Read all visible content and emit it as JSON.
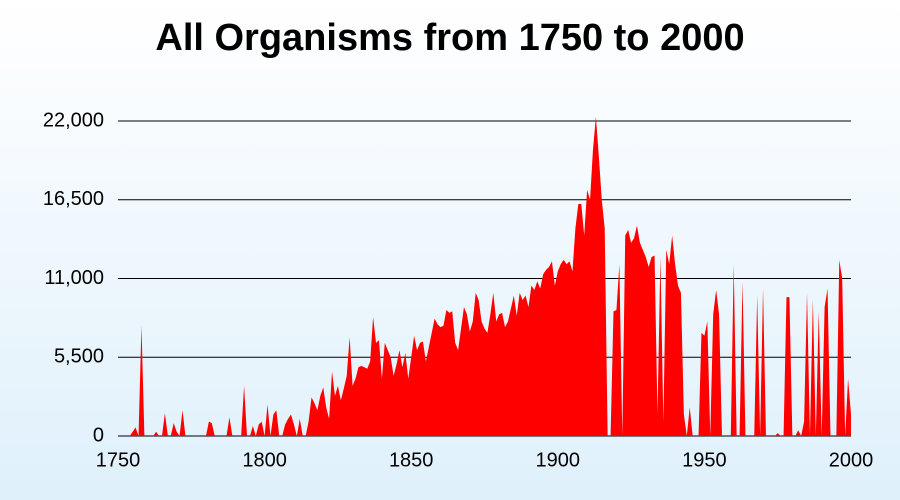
{
  "chart_data": {
    "type": "area",
    "title": "All Organisms from 1750 to 2000",
    "color": "#ff0000",
    "x": [
      1750,
      1751,
      1752,
      1753,
      1754,
      1755,
      1756,
      1757,
      1758,
      1759,
      1760,
      1761,
      1762,
      1763,
      1764,
      1765,
      1766,
      1767,
      1768,
      1769,
      1770,
      1771,
      1772,
      1773,
      1774,
      1775,
      1776,
      1777,
      1778,
      1779,
      1780,
      1781,
      1782,
      1783,
      1784,
      1785,
      1786,
      1787,
      1788,
      1789,
      1790,
      1791,
      1792,
      1793,
      1794,
      1795,
      1796,
      1797,
      1798,
      1799,
      1800,
      1801,
      1802,
      1803,
      1804,
      1805,
      1806,
      1807,
      1808,
      1809,
      1810,
      1811,
      1812,
      1813,
      1814,
      1815,
      1816,
      1817,
      1818,
      1819,
      1820,
      1821,
      1822,
      1823,
      1824,
      1825,
      1826,
      1827,
      1828,
      1829,
      1830,
      1831,
      1832,
      1833,
      1834,
      1835,
      1836,
      1837,
      1838,
      1839,
      1840,
      1841,
      1842,
      1843,
      1844,
      1845,
      1846,
      1847,
      1848,
      1849,
      1850,
      1851,
      1852,
      1853,
      1854,
      1855,
      1856,
      1857,
      1858,
      1859,
      1860,
      1861,
      1862,
      1863,
      1864,
      1865,
      1866,
      1867,
      1868,
      1869,
      1870,
      1871,
      1872,
      1873,
      1874,
      1875,
      1876,
      1877,
      1878,
      1879,
      1880,
      1881,
      1882,
      1883,
      1884,
      1885,
      1886,
      1887,
      1888,
      1889,
      1890,
      1891,
      1892,
      1893,
      1894,
      1895,
      1896,
      1897,
      1898,
      1899,
      1900,
      1901,
      1902,
      1903,
      1904,
      1905,
      1906,
      1907,
      1908,
      1909,
      1910,
      1911,
      1912,
      1913,
      1914,
      1915,
      1916,
      1917,
      1918,
      1919,
      1920,
      1921,
      1922,
      1923,
      1924,
      1925,
      1926,
      1927,
      1928,
      1929,
      1930,
      1931,
      1932,
      1933,
      1934,
      1935,
      1936,
      1937,
      1938,
      1939,
      1940,
      1941,
      1942,
      1943,
      1944,
      1945,
      1946,
      1947,
      1948,
      1949,
      1950,
      1951,
      1952,
      1953,
      1954,
      1955,
      1956,
      1957,
      1958,
      1959,
      1960,
      1961,
      1962,
      1963,
      1964,
      1965,
      1966,
      1967,
      1968,
      1969,
      1970,
      1971,
      1972,
      1973,
      1974,
      1975,
      1976,
      1977,
      1978,
      1979,
      1980,
      1981,
      1982,
      1983,
      1984,
      1985,
      1986,
      1987,
      1988,
      1989,
      1990,
      1991,
      1992,
      1993,
      1994,
      1995,
      1996,
      1997,
      1998,
      1999,
      2000
    ],
    "values": [
      0,
      0,
      0,
      0,
      0,
      300,
      600,
      0,
      7700,
      0,
      0,
      0,
      0,
      300,
      0,
      0,
      1600,
      0,
      0,
      900,
      300,
      0,
      1800,
      0,
      0,
      0,
      0,
      0,
      0,
      0,
      0,
      1000,
      900,
      0,
      0,
      0,
      0,
      0,
      1300,
      0,
      0,
      0,
      0,
      3500,
      0,
      0,
      700,
      0,
      800,
      1000,
      0,
      2200,
      0,
      1500,
      1800,
      0,
      0,
      800,
      1200,
      1500,
      800,
      0,
      1200,
      0,
      0,
      1000,
      2700,
      2300,
      1800,
      2800,
      3400,
      2000,
      1200,
      4500,
      2800,
      3500,
      2500,
      3300,
      4200,
      6900,
      3500,
      4000,
      4800,
      4900,
      4800,
      4700,
      5200,
      8300,
      6500,
      6700,
      4000,
      6500,
      6000,
      5500,
      4200,
      5000,
      6000,
      4800,
      5800,
      4000,
      5500,
      7000,
      6000,
      6500,
      6600,
      5200,
      6200,
      7200,
      8200,
      7800,
      7600,
      7700,
      8800,
      8600,
      8700,
      6500,
      6000,
      7500,
      9000,
      8500,
      7300,
      8000,
      10000,
      9500,
      8000,
      7500,
      7200,
      8500,
      10000,
      8000,
      8500,
      8600,
      7600,
      8000,
      8900,
      9800,
      8400,
      10000,
      9500,
      9800,
      9000,
      10500,
      10200,
      10800,
      10300,
      11300,
      11600,
      11800,
      12200,
      10500,
      11500,
      12000,
      12300,
      12000,
      12200,
      11500,
      14500,
      16200,
      16200,
      14000,
      17200,
      16500,
      20000,
      22300,
      19500,
      16500,
      14500,
      0,
      0,
      8700,
      8800,
      12000,
      0,
      14000,
      14400,
      13500,
      13800,
      14700,
      13500,
      13000,
      12500,
      11800,
      12500,
      12600,
      1500,
      12500,
      1000,
      13000,
      12000,
      14000,
      12000,
      10500,
      10000,
      1500,
      0,
      2000,
      0,
      0,
      0,
      7200,
      7000,
      8000,
      0,
      8500,
      10200,
      8500,
      0,
      0,
      0,
      0,
      12000,
      0,
      0,
      10800,
      0,
      0,
      0,
      0,
      9800,
      0,
      10300,
      0,
      0,
      0,
      0,
      200,
      0,
      0,
      9700,
      9700,
      0,
      0,
      400,
      0,
      1000,
      10000,
      0,
      9500,
      0,
      8700,
      0,
      9000,
      10300,
      0,
      0,
      0,
      12300,
      11000,
      0,
      4000,
      1500
    ],
    "xlim": [
      1750,
      2000
    ],
    "xticks": [
      1750,
      1800,
      1850,
      1900,
      1950,
      2000
    ],
    "ylim": [
      0,
      22000
    ],
    "yticks": [
      0,
      {
        "value": 5500,
        "label": "5,500"
      },
      {
        "value": 11000,
        "label": "11,000"
      },
      {
        "value": 16500,
        "label": "16,500"
      },
      {
        "value": 22000,
        "label": "22,000"
      }
    ],
    "grid": true
  }
}
